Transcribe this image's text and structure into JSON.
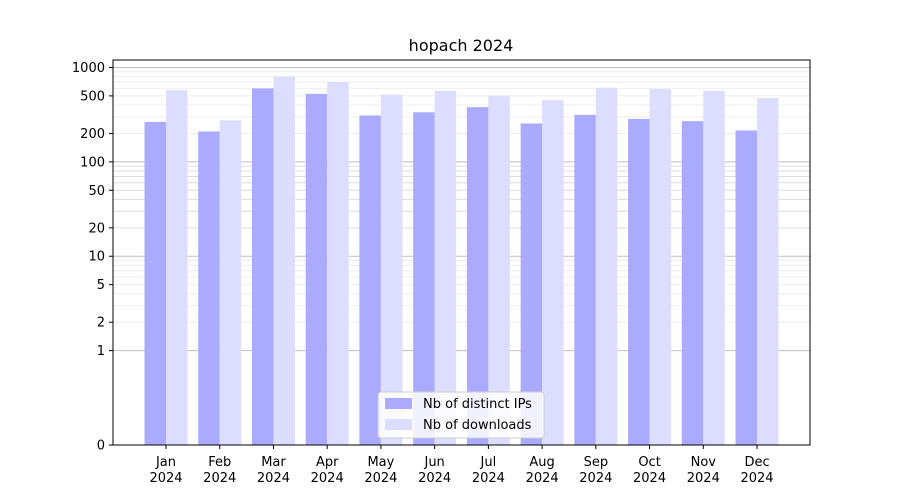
{
  "chart_data": {
    "type": "bar",
    "title": "hopach 2024",
    "xlabel": "",
    "ylabel": "",
    "categories": [
      [
        "Jan",
        "2024"
      ],
      [
        "Feb",
        "2024"
      ],
      [
        "Mar",
        "2024"
      ],
      [
        "Apr",
        "2024"
      ],
      [
        "May",
        "2024"
      ],
      [
        "Jun",
        "2024"
      ],
      [
        "Jul",
        "2024"
      ],
      [
        "Aug",
        "2024"
      ],
      [
        "Sep",
        "2024"
      ],
      [
        "Oct",
        "2024"
      ],
      [
        "Nov",
        "2024"
      ],
      [
        "Dec",
        "2024"
      ]
    ],
    "series": [
      {
        "name": "Nb of distinct IPs",
        "color": "#aaaaff",
        "values": [
          265,
          210,
          600,
          525,
          310,
          335,
          380,
          255,
          315,
          285,
          270,
          215
        ]
      },
      {
        "name": "Nb of downloads",
        "color": "#ddddff",
        "values": [
          575,
          275,
          800,
          700,
          515,
          565,
          505,
          450,
          610,
          590,
          565,
          475
        ]
      }
    ],
    "yscale": "symlog",
    "ylim": [
      0,
      1200
    ],
    "yticks": [
      {
        "value": 0,
        "label": "0"
      },
      {
        "value": 1,
        "label": "1"
      },
      {
        "value": 2,
        "label": "2"
      },
      {
        "value": 5,
        "label": "5"
      },
      {
        "value": 10,
        "label": "10"
      },
      {
        "value": 20,
        "label": "20"
      },
      {
        "value": 50,
        "label": "50"
      },
      {
        "value": 100,
        "label": "100"
      },
      {
        "value": 200,
        "label": "200"
      },
      {
        "value": 500,
        "label": "500"
      },
      {
        "value": 1000,
        "label": "1000"
      }
    ],
    "grid": true,
    "legend_position": "bottom-center"
  }
}
